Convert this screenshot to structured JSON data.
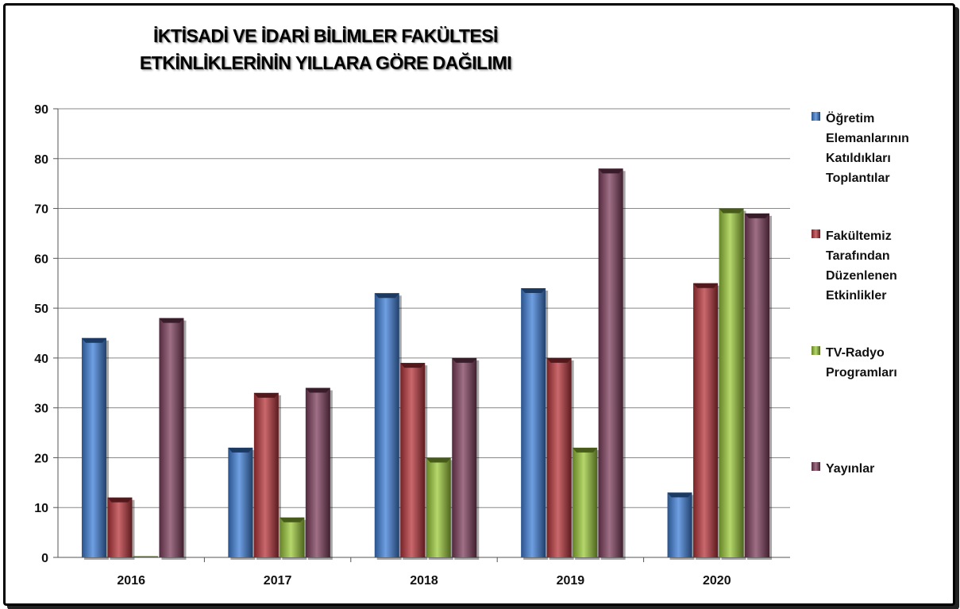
{
  "chart_data": {
    "type": "bar",
    "title": [
      "İKTİSADİ VE İDARİ BİLİMLER FAKÜLTESİ",
      "ETKİNLİKLERİNİN YILLARA GÖRE DAĞILIMI"
    ],
    "categories": [
      "2016",
      "2017",
      "2018",
      "2019",
      "2020"
    ],
    "series": [
      {
        "name": [
          "Öğretim",
          "Elemanlarının",
          "Katıldıkları",
          "Toplantılar"
        ],
        "values": [
          44,
          22,
          53,
          54,
          13
        ],
        "color": "#3f7fd8"
      },
      {
        "name": [
          "Fakültemiz",
          "Tarafından",
          "Düzenlenen",
          "Etkinlikler"
        ],
        "values": [
          12,
          33,
          39,
          40,
          55
        ],
        "color": "#b8363c"
      },
      {
        "name": [
          "TV-Radyo",
          "Programları"
        ],
        "values": [
          0,
          8,
          20,
          22,
          70
        ],
        "color": "#9cc93a"
      },
      {
        "name": [
          "Yayınlar"
        ],
        "values": [
          48,
          34,
          40,
          78,
          69
        ],
        "color": "#7f3f5e"
      }
    ],
    "ylim": [
      0,
      90
    ],
    "yticks": [
      0,
      10,
      20,
      30,
      40,
      50,
      60,
      70,
      80,
      90
    ],
    "grid": true,
    "legend": "right"
  }
}
